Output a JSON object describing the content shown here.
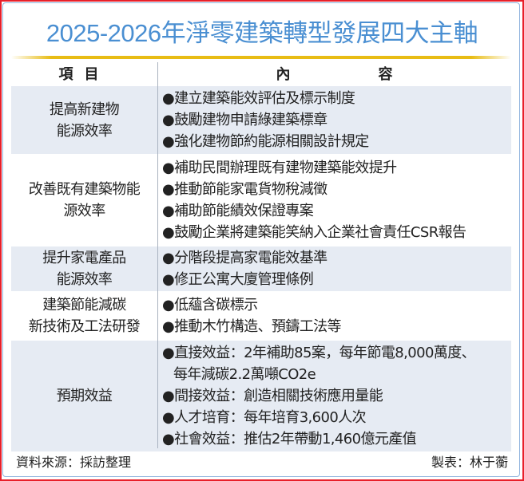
{
  "title": "2025-2026年淨零建築轉型發展四大主軸",
  "header": {
    "col1": "項目",
    "col2a": "內",
    "col2b": "容"
  },
  "rows": [
    {
      "label": [
        "提高新建物",
        "能源效率"
      ],
      "items": [
        "●建立建築能效評估及標示制度",
        "●鼓勵建物申請綠建築標章",
        "●強化建物節約能源相關設計規定"
      ]
    },
    {
      "label": [
        "改善既有建築物能",
        "源效率"
      ],
      "items": [
        "●補助民間辦理既有建物建築能效提升",
        "●推動節能家電貨物稅減徵",
        "●補助節能績效保證專案",
        "●鼓勵企業將建築能笑納入企業社會責任CSR報告"
      ]
    },
    {
      "label": [
        "提升家電產品",
        "能源效率"
      ],
      "items": [
        "●分階段提高家電能效基準",
        "●修正公寓大廈管理條例"
      ]
    },
    {
      "label": [
        "建築節能減碳",
        "新技術及工法研發"
      ],
      "items": [
        "●低蘊含碳標示",
        "●推動木竹構造、預鑄工法等"
      ]
    },
    {
      "label": [
        "預期效益"
      ],
      "items": [
        "●直接效益：2年補助85案，每年節電8,000萬度、",
        "每年減碳2.2萬噸CO2e",
        "●間接效益：創造相關技術應用量能",
        "●人才培育：每年培育3,600人次",
        "●社會效益：推估2年帶動1,460億元產值"
      ]
    }
  ],
  "footer": {
    "source": "資料來源：採訪整理",
    "credit": "製表：林于蘅"
  },
  "colors": {
    "title": "#4a8fd2",
    "rule": "#e8bc14",
    "shade": "#e6ebf3",
    "border": "#e8202a"
  }
}
